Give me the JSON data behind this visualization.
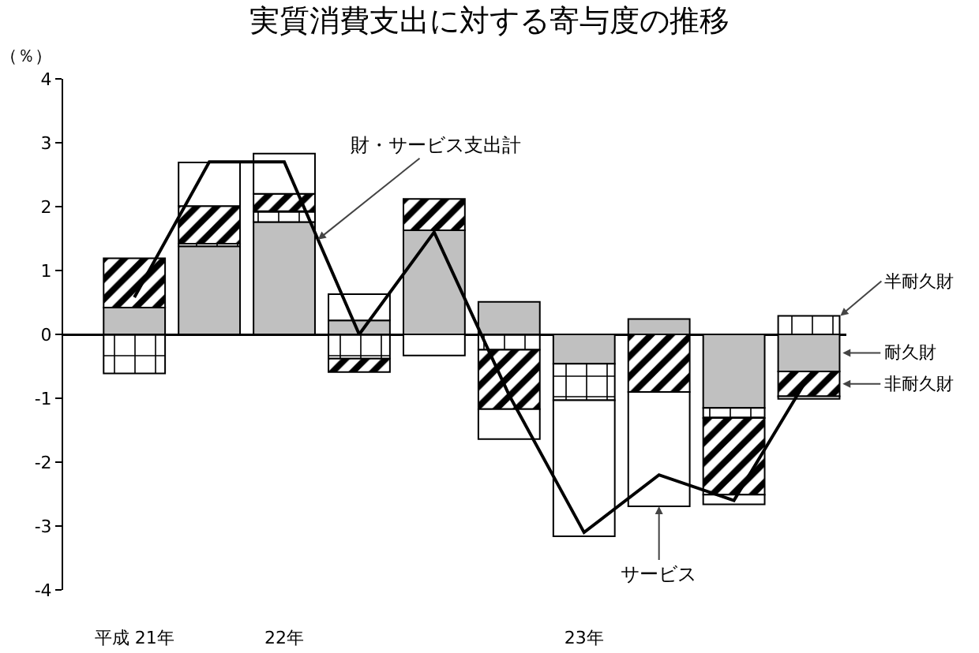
{
  "chart_data": {
    "type": "bar",
    "title": "実質消費支出に対する寄与度の推移",
    "ylabel": "（％）",
    "stacked": true,
    "legend": false,
    "categories": [
      "平成 21年",
      null,
      "22年",
      null,
      null,
      null,
      "23年",
      null,
      null,
      null
    ],
    "series": [
      {
        "name": "耐久財",
        "color": "#c0c0c0",
        "values": [
          0.42,
          1.38,
          1.76,
          0.22,
          1.63,
          0.51,
          -0.46,
          0.24,
          -1.15,
          -0.58
        ]
      },
      {
        "name": "半耐久財",
        "color": "#000000",
        "values": [
          -0.61,
          0.04,
          0.17,
          -0.38,
          null,
          -0.24,
          -0.57,
          null,
          -0.16,
          0.29
        ]
      },
      {
        "name": "非耐久財",
        "color": "#000000",
        "values": [
          0.77,
          0.59,
          0.27,
          -0.21,
          0.49,
          -0.93,
          null,
          -0.9,
          -1.2,
          -0.39
        ]
      },
      {
        "name": "サービス",
        "color": "#ffffff",
        "values": [
          null,
          0.68,
          0.63,
          0.41,
          -0.33,
          -0.47,
          -2.13,
          -1.79,
          -0.15,
          -0.04
        ]
      },
      {
        "name": "財・サービス支出計",
        "type": "line",
        "color": "#000000",
        "marker": "none",
        "line_style": "solid",
        "values": [
          0.58,
          2.7,
          2.7,
          0,
          1.6,
          -0.95,
          -3.1,
          -2.2,
          -2.6,
          -0.65
        ]
      }
    ],
    "ylim": [
      -4,
      4
    ],
    "yticks": [
      -4,
      -3,
      -2,
      -1,
      0,
      1,
      2,
      3,
      4
    ]
  }
}
